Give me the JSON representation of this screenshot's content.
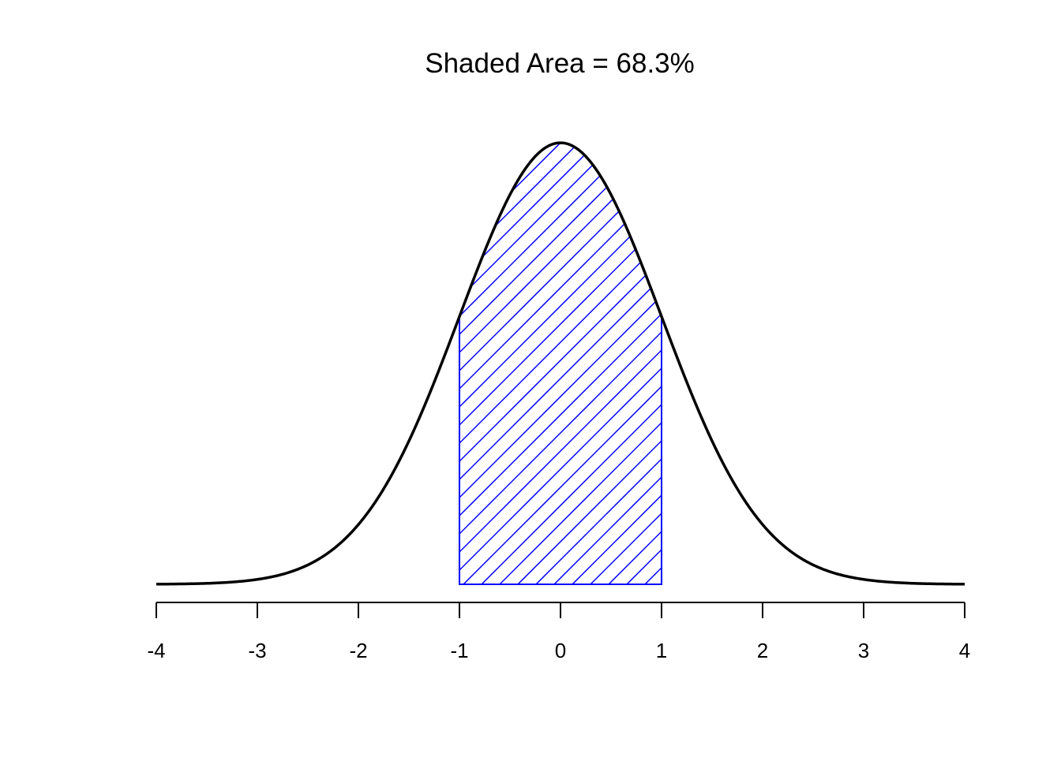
{
  "chart_data": {
    "type": "area",
    "title": "Shaded Area = 68.3%",
    "xlabel": "",
    "ylabel": "",
    "xlim": [
      -4,
      4
    ],
    "ylim": [
      0,
      0.399
    ],
    "x_ticks": [
      -4,
      -3,
      -2,
      -1,
      0,
      1,
      2,
      3,
      4
    ],
    "x_tick_labels": [
      "-4",
      "-3",
      "-2",
      "-1",
      "0",
      "1",
      "2",
      "3",
      "4"
    ],
    "grid": false,
    "y_axis_shown": false,
    "series": [
      {
        "kind": "curve",
        "description_function": "standard normal density",
        "x": [
          -4,
          -3.5,
          -3,
          -2.5,
          -2,
          -1.5,
          -1,
          -0.5,
          0,
          0.5,
          1,
          1.5,
          2,
          2.5,
          3,
          3.5,
          4
        ],
        "y": [
          0.0001,
          0.0009,
          0.0044,
          0.0175,
          0.054,
          0.1295,
          0.242,
          0.3521,
          0.3989,
          0.3521,
          0.242,
          0.1295,
          0.054,
          0.0175,
          0.0044,
          0.0009,
          0.0001
        ],
        "color": "#000000"
      },
      {
        "kind": "shaded_region",
        "x_from": -1,
        "x_to": 1,
        "area_percent": 68.3,
        "fill": "hatch",
        "color": "#0000FF"
      }
    ]
  }
}
